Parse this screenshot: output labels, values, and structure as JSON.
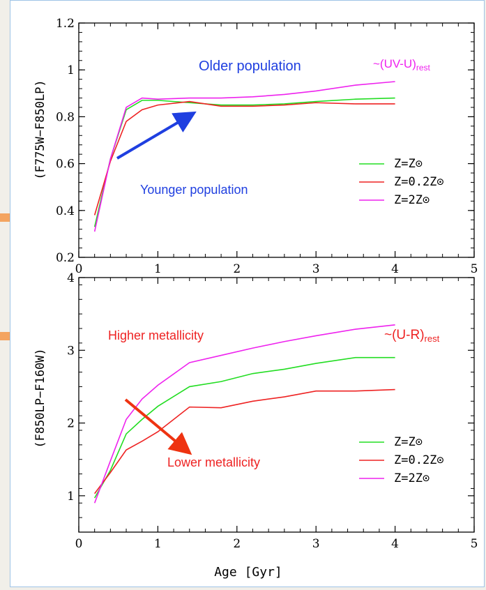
{
  "chart_data": [
    {
      "type": "line",
      "ylabel": "(F775W−F850LP)",
      "xlabel": "",
      "xlim": [
        0,
        5
      ],
      "ylim": [
        0.2,
        1.2
      ],
      "xticks": [
        "0",
        "1",
        "2",
        "3",
        "4",
        "5"
      ],
      "yticks": [
        "0.2",
        "0.4",
        "0.6",
        "0.8",
        "1",
        "1.2"
      ],
      "yticks_values": [
        0.2,
        0.4,
        0.6,
        0.8,
        1.0,
        1.2
      ],
      "x": [
        0.2,
        0.4,
        0.6,
        0.8,
        1.0,
        1.4,
        1.8,
        2.2,
        2.6,
        3.0,
        3.5,
        4.0
      ],
      "series": [
        {
          "name": "Z=Z⊙",
          "color": "#22dd22",
          "values": [
            0.33,
            0.62,
            0.83,
            0.87,
            0.87,
            0.86,
            0.85,
            0.85,
            0.855,
            0.865,
            0.875,
            0.88
          ]
        },
        {
          "name": "Z=0.2Z⊙",
          "color": "#ee2222",
          "values": [
            0.38,
            0.61,
            0.78,
            0.83,
            0.85,
            0.865,
            0.845,
            0.845,
            0.85,
            0.86,
            0.855,
            0.855
          ]
        },
        {
          "name": "Z=2Z⊙",
          "color": "#ee22ee",
          "values": [
            0.31,
            0.62,
            0.84,
            0.88,
            0.875,
            0.88,
            0.88,
            0.885,
            0.895,
            0.91,
            0.935,
            0.95
          ]
        }
      ],
      "annotations": {
        "older": "Older population",
        "younger": "Younger population",
        "label_main": "~(UV-U)",
        "label_sub": "rest"
      },
      "arrow_color": "#1f3fe0",
      "legend_position": "lower-right"
    },
    {
      "type": "line",
      "ylabel": "(F850LP−F160W)",
      "xlabel": "Age [Gyr]",
      "xlim": [
        0,
        5
      ],
      "ylim": [
        0.5,
        4
      ],
      "xticks": [
        "0",
        "1",
        "2",
        "3",
        "4",
        "5"
      ],
      "yticks": [
        "1",
        "2",
        "3",
        "4"
      ],
      "yticks_values": [
        1,
        2,
        3,
        4
      ],
      "x": [
        0.2,
        0.4,
        0.6,
        0.8,
        1.0,
        1.4,
        1.8,
        2.2,
        2.6,
        3.0,
        3.5,
        4.0
      ],
      "series": [
        {
          "name": "Z=Z⊙",
          "color": "#22dd22",
          "values": [
            0.97,
            1.35,
            1.85,
            2.05,
            2.23,
            2.5,
            2.57,
            2.68,
            2.74,
            2.82,
            2.9,
            2.9
          ]
        },
        {
          "name": "Z=0.2Z⊙",
          "color": "#ee2222",
          "values": [
            1.03,
            1.32,
            1.63,
            1.75,
            1.88,
            2.22,
            2.21,
            2.3,
            2.36,
            2.44,
            2.44,
            2.46
          ]
        },
        {
          "name": "Z=2Z⊙",
          "color": "#ee22ee",
          "values": [
            0.9,
            1.48,
            2.05,
            2.33,
            2.52,
            2.83,
            2.93,
            3.03,
            3.12,
            3.2,
            3.29,
            3.35
          ]
        }
      ],
      "annotations": {
        "higher": "Higher metallicity",
        "lower": "Lower metallicity",
        "label_main": "~(U-R)",
        "label_sub": "rest"
      },
      "arrow_color": "#ee3311",
      "legend_position": "lower-right"
    }
  ],
  "colors": {
    "side_arrow": "#f4a460",
    "panel_border": "#9ec3e6"
  }
}
